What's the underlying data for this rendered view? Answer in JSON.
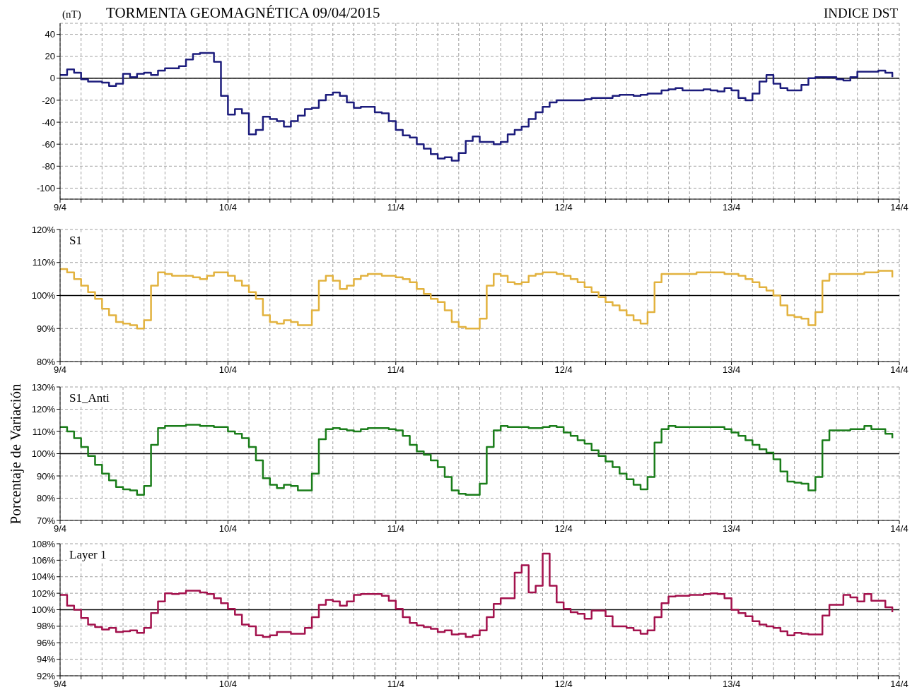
{
  "chart_data": [
    {
      "type": "step",
      "title": "TORMENTA GEOMAGNÉTICA 09/04/2015",
      "ylabel": "(nT)",
      "annotations": [
        "INDICE DST"
      ],
      "grid": true,
      "x": [
        "2015-04-09T00:00",
        "2015-04-09T01:00",
        "2015-04-09T02:00",
        "2015-04-09T03:00",
        "2015-04-09T04:00",
        "2015-04-09T05:00",
        "2015-04-09T06:00",
        "2015-04-09T07:00",
        "2015-04-09T08:00",
        "2015-04-09T09:00",
        "2015-04-09T10:00",
        "2015-04-09T11:00",
        "2015-04-09T12:00",
        "2015-04-09T13:00",
        "2015-04-09T14:00",
        "2015-04-09T15:00",
        "2015-04-09T16:00",
        "2015-04-09T17:00",
        "2015-04-09T18:00",
        "2015-04-09T19:00",
        "2015-04-09T20:00",
        "2015-04-09T21:00",
        "2015-04-09T22:00",
        "2015-04-09T23:00",
        "2015-04-10T00:00",
        "2015-04-10T01:00",
        "2015-04-10T02:00",
        "2015-04-10T03:00",
        "2015-04-10T04:00",
        "2015-04-10T05:00",
        "2015-04-10T06:00",
        "2015-04-10T07:00",
        "2015-04-10T08:00",
        "2015-04-10T09:00",
        "2015-04-10T10:00",
        "2015-04-10T11:00",
        "2015-04-10T12:00",
        "2015-04-10T13:00",
        "2015-04-10T14:00",
        "2015-04-10T15:00",
        "2015-04-10T16:00",
        "2015-04-10T17:00",
        "2015-04-10T18:00",
        "2015-04-10T19:00",
        "2015-04-10T20:00",
        "2015-04-10T21:00",
        "2015-04-10T22:00",
        "2015-04-10T23:00",
        "2015-04-11T00:00",
        "2015-04-11T01:00",
        "2015-04-11T02:00",
        "2015-04-11T03:00",
        "2015-04-11T04:00",
        "2015-04-11T05:00",
        "2015-04-11T06:00",
        "2015-04-11T07:00",
        "2015-04-11T08:00",
        "2015-04-11T09:00",
        "2015-04-11T10:00",
        "2015-04-11T11:00",
        "2015-04-11T12:00",
        "2015-04-11T13:00",
        "2015-04-11T14:00",
        "2015-04-11T15:00",
        "2015-04-11T16:00",
        "2015-04-11T17:00",
        "2015-04-11T18:00",
        "2015-04-11T19:00",
        "2015-04-11T20:00",
        "2015-04-11T21:00",
        "2015-04-11T22:00",
        "2015-04-11T23:00",
        "2015-04-12T00:00",
        "2015-04-12T01:00",
        "2015-04-12T02:00",
        "2015-04-12T03:00",
        "2015-04-12T04:00",
        "2015-04-12T05:00",
        "2015-04-12T06:00",
        "2015-04-12T07:00",
        "2015-04-12T08:00",
        "2015-04-12T09:00",
        "2015-04-12T10:00",
        "2015-04-12T11:00",
        "2015-04-12T12:00",
        "2015-04-12T13:00",
        "2015-04-12T14:00",
        "2015-04-12T15:00",
        "2015-04-12T16:00",
        "2015-04-12T17:00",
        "2015-04-12T18:00",
        "2015-04-12T19:00",
        "2015-04-12T20:00",
        "2015-04-12T21:00",
        "2015-04-12T22:00",
        "2015-04-12T23:00",
        "2015-04-13T00:00",
        "2015-04-13T01:00",
        "2015-04-13T02:00",
        "2015-04-13T03:00",
        "2015-04-13T04:00",
        "2015-04-13T05:00",
        "2015-04-13T06:00",
        "2015-04-13T07:00",
        "2015-04-13T08:00",
        "2015-04-13T09:00",
        "2015-04-13T10:00",
        "2015-04-13T11:00",
        "2015-04-13T12:00",
        "2015-04-13T13:00",
        "2015-04-13T14:00",
        "2015-04-13T15:00",
        "2015-04-13T16:00",
        "2015-04-13T17:00",
        "2015-04-13T18:00",
        "2015-04-13T19:00",
        "2015-04-13T20:00",
        "2015-04-13T21:00",
        "2015-04-13T22:00",
        "2015-04-13T23:00"
      ],
      "xlim": [
        "2015-04-09T00:00",
        "2015-04-14T00:00"
      ],
      "xticks": [
        {
          "value": "2015-04-09T00:00",
          "label": "9/4"
        },
        {
          "value": "2015-04-09T03:00",
          "label": null
        },
        {
          "value": "2015-04-09T06:00",
          "label": null
        },
        {
          "value": "2015-04-09T09:00",
          "label": null
        },
        {
          "value": "2015-04-09T12:00",
          "label": null
        },
        {
          "value": "2015-04-09T15:00",
          "label": null
        },
        {
          "value": "2015-04-09T18:00",
          "label": null
        },
        {
          "value": "2015-04-09T21:00",
          "label": null
        },
        {
          "value": "2015-04-10T00:00",
          "label": "10/4"
        },
        {
          "value": "2015-04-10T03:00",
          "label": null
        },
        {
          "value": "2015-04-10T06:00",
          "label": null
        },
        {
          "value": "2015-04-10T09:00",
          "label": null
        },
        {
          "value": "2015-04-10T12:00",
          "label": null
        },
        {
          "value": "2015-04-10T15:00",
          "label": null
        },
        {
          "value": "2015-04-10T18:00",
          "label": null
        },
        {
          "value": "2015-04-10T21:00",
          "label": null
        },
        {
          "value": "2015-04-11T00:00",
          "label": "11/4"
        },
        {
          "value": "2015-04-11T03:00",
          "label": null
        },
        {
          "value": "2015-04-11T06:00",
          "label": null
        },
        {
          "value": "2015-04-11T09:00",
          "label": null
        },
        {
          "value": "2015-04-11T12:00",
          "label": null
        },
        {
          "value": "2015-04-11T15:00",
          "label": null
        },
        {
          "value": "2015-04-11T18:00",
          "label": null
        },
        {
          "value": "2015-04-11T21:00",
          "label": null
        },
        {
          "value": "2015-04-12T00:00",
          "label": "12/4"
        },
        {
          "value": "2015-04-12T03:00",
          "label": null
        },
        {
          "value": "2015-04-12T06:00",
          "label": null
        },
        {
          "value": "2015-04-12T09:00",
          "label": null
        },
        {
          "value": "2015-04-12T12:00",
          "label": null
        },
        {
          "value": "2015-04-12T15:00",
          "label": null
        },
        {
          "value": "2015-04-12T18:00",
          "label": null
        },
        {
          "value": "2015-04-12T21:00",
          "label": null
        },
        {
          "value": "2015-04-13T00:00",
          "label": "13/4"
        },
        {
          "value": "2015-04-13T03:00",
          "label": null
        },
        {
          "value": "2015-04-13T06:00",
          "label": null
        },
        {
          "value": "2015-04-13T09:00",
          "label": null
        },
        {
          "value": "2015-04-13T12:00",
          "label": null
        },
        {
          "value": "2015-04-13T15:00",
          "label": null
        },
        {
          "value": "2015-04-13T18:00",
          "label": null
        },
        {
          "value": "2015-04-13T21:00",
          "label": null
        },
        {
          "value": "2015-04-14T00:00",
          "label": "14/4"
        }
      ],
      "ylim": [
        -110,
        50
      ],
      "yticks": [
        -100,
        -80,
        -60,
        -40,
        -20,
        0,
        20,
        40
      ],
      "ref_lines": [
        {
          "axis": "y",
          "value": 0,
          "color": "#000000"
        }
      ],
      "series": [
        {
          "color": "#1c1c7c",
          "values": [
            3,
            8,
            5,
            -1,
            -3,
            -3,
            -4,
            -7,
            -5,
            4,
            1,
            4,
            5,
            3,
            7,
            9,
            9,
            11,
            17,
            22,
            23,
            23,
            15,
            -16,
            -33,
            -28,
            -32,
            -51,
            -47,
            -35,
            -37,
            -39,
            -44,
            -39,
            -34,
            -28,
            -27,
            -20,
            -15,
            -13,
            -16,
            -22,
            -27,
            -26,
            -26,
            -31,
            -32,
            -39,
            -47,
            -52,
            -54,
            -60,
            -64,
            -69,
            -73,
            -72,
            -75,
            -68,
            -57,
            -53,
            -58,
            -58,
            -60,
            -58,
            -51,
            -47,
            -44,
            -37,
            -31,
            -26,
            -22,
            -20,
            -20,
            -20,
            -20,
            -19,
            -18,
            -18,
            -18,
            -16,
            -15,
            -15,
            -16,
            -15,
            -14,
            -14,
            -11,
            -10,
            -9,
            -11,
            -11,
            -11,
            -10,
            -11,
            -12,
            -9,
            -11,
            -18,
            -20,
            -14,
            -3,
            3,
            -5,
            -9,
            -11,
            -11,
            -6,
            0,
            1,
            1,
            1,
            -1,
            -2,
            1,
            6,
            6,
            6,
            7,
            5,
            1
          ]
        }
      ]
    },
    {
      "type": "step",
      "grid": true,
      "x": [
        "2015-04-09T00:00",
        "2015-04-09T01:00",
        "2015-04-09T02:00",
        "2015-04-09T03:00",
        "2015-04-09T04:00",
        "2015-04-09T05:00",
        "2015-04-09T06:00",
        "2015-04-09T07:00",
        "2015-04-09T08:00",
        "2015-04-09T09:00",
        "2015-04-09T10:00",
        "2015-04-09T11:00",
        "2015-04-09T12:00",
        "2015-04-09T13:00",
        "2015-04-09T14:00",
        "2015-04-09T15:00",
        "2015-04-09T16:00",
        "2015-04-09T17:00",
        "2015-04-09T18:00",
        "2015-04-09T19:00",
        "2015-04-09T20:00",
        "2015-04-09T21:00",
        "2015-04-09T22:00",
        "2015-04-09T23:00",
        "2015-04-10T00:00",
        "2015-04-10T01:00",
        "2015-04-10T02:00",
        "2015-04-10T03:00",
        "2015-04-10T04:00",
        "2015-04-10T05:00",
        "2015-04-10T06:00",
        "2015-04-10T07:00",
        "2015-04-10T08:00",
        "2015-04-10T09:00",
        "2015-04-10T10:00",
        "2015-04-10T11:00",
        "2015-04-10T12:00",
        "2015-04-10T13:00",
        "2015-04-10T14:00",
        "2015-04-10T15:00",
        "2015-04-10T16:00",
        "2015-04-10T17:00",
        "2015-04-10T18:00",
        "2015-04-10T19:00",
        "2015-04-10T20:00",
        "2015-04-10T21:00",
        "2015-04-10T22:00",
        "2015-04-10T23:00",
        "2015-04-11T00:00",
        "2015-04-11T01:00",
        "2015-04-11T02:00",
        "2015-04-11T03:00",
        "2015-04-11T04:00",
        "2015-04-11T05:00",
        "2015-04-11T06:00",
        "2015-04-11T07:00",
        "2015-04-11T08:00",
        "2015-04-11T09:00",
        "2015-04-11T10:00",
        "2015-04-11T11:00",
        "2015-04-11T12:00",
        "2015-04-11T13:00",
        "2015-04-11T14:00",
        "2015-04-11T15:00",
        "2015-04-11T16:00",
        "2015-04-11T17:00",
        "2015-04-11T18:00",
        "2015-04-11T19:00",
        "2015-04-11T20:00",
        "2015-04-11T21:00",
        "2015-04-11T22:00",
        "2015-04-11T23:00",
        "2015-04-12T00:00",
        "2015-04-12T01:00",
        "2015-04-12T02:00",
        "2015-04-12T03:00",
        "2015-04-12T04:00",
        "2015-04-12T05:00",
        "2015-04-12T06:00",
        "2015-04-12T07:00",
        "2015-04-12T08:00",
        "2015-04-12T09:00",
        "2015-04-12T10:00",
        "2015-04-12T11:00",
        "2015-04-12T12:00",
        "2015-04-12T13:00",
        "2015-04-12T14:00",
        "2015-04-12T15:00",
        "2015-04-12T16:00",
        "2015-04-12T17:00",
        "2015-04-12T18:00",
        "2015-04-12T19:00",
        "2015-04-12T20:00",
        "2015-04-12T21:00",
        "2015-04-12T22:00",
        "2015-04-12T23:00",
        "2015-04-13T00:00",
        "2015-04-13T01:00",
        "2015-04-13T02:00",
        "2015-04-13T03:00",
        "2015-04-13T04:00",
        "2015-04-13T05:00",
        "2015-04-13T06:00",
        "2015-04-13T07:00",
        "2015-04-13T08:00",
        "2015-04-13T09:00",
        "2015-04-13T10:00",
        "2015-04-13T11:00",
        "2015-04-13T12:00",
        "2015-04-13T13:00",
        "2015-04-13T14:00",
        "2015-04-13T15:00",
        "2015-04-13T16:00",
        "2015-04-13T17:00",
        "2015-04-13T18:00",
        "2015-04-13T19:00",
        "2015-04-13T20:00",
        "2015-04-13T21:00",
        "2015-04-13T22:00",
        "2015-04-13T23:00"
      ],
      "xlim": [
        "2015-04-09T00:00",
        "2015-04-14T00:00"
      ],
      "xticks": [
        {
          "value": "2015-04-09T00:00",
          "label": "9/4"
        },
        {
          "value": "2015-04-09T03:00",
          "label": null
        },
        {
          "value": "2015-04-09T06:00",
          "label": null
        },
        {
          "value": "2015-04-09T09:00",
          "label": null
        },
        {
          "value": "2015-04-09T12:00",
          "label": null
        },
        {
          "value": "2015-04-09T15:00",
          "label": null
        },
        {
          "value": "2015-04-09T18:00",
          "label": null
        },
        {
          "value": "2015-04-09T21:00",
          "label": null
        },
        {
          "value": "2015-04-10T00:00",
          "label": "10/4"
        },
        {
          "value": "2015-04-10T03:00",
          "label": null
        },
        {
          "value": "2015-04-10T06:00",
          "label": null
        },
        {
          "value": "2015-04-10T09:00",
          "label": null
        },
        {
          "value": "2015-04-10T12:00",
          "label": null
        },
        {
          "value": "2015-04-10T15:00",
          "label": null
        },
        {
          "value": "2015-04-10T18:00",
          "label": null
        },
        {
          "value": "2015-04-10T21:00",
          "label": null
        },
        {
          "value": "2015-04-11T00:00",
          "label": "11/4"
        },
        {
          "value": "2015-04-11T03:00",
          "label": null
        },
        {
          "value": "2015-04-11T06:00",
          "label": null
        },
        {
          "value": "2015-04-11T09:00",
          "label": null
        },
        {
          "value": "2015-04-11T12:00",
          "label": null
        },
        {
          "value": "2015-04-11T15:00",
          "label": null
        },
        {
          "value": "2015-04-11T18:00",
          "label": null
        },
        {
          "value": "2015-04-11T21:00",
          "label": null
        },
        {
          "value": "2015-04-12T00:00",
          "label": "12/4"
        },
        {
          "value": "2015-04-12T03:00",
          "label": null
        },
        {
          "value": "2015-04-12T06:00",
          "label": null
        },
        {
          "value": "2015-04-12T09:00",
          "label": null
        },
        {
          "value": "2015-04-12T12:00",
          "label": null
        },
        {
          "value": "2015-04-12T15:00",
          "label": null
        },
        {
          "value": "2015-04-12T18:00",
          "label": null
        },
        {
          "value": "2015-04-12T21:00",
          "label": null
        },
        {
          "value": "2015-04-13T00:00",
          "label": "13/4"
        },
        {
          "value": "2015-04-13T03:00",
          "label": null
        },
        {
          "value": "2015-04-13T06:00",
          "label": null
        },
        {
          "value": "2015-04-13T09:00",
          "label": null
        },
        {
          "value": "2015-04-13T12:00",
          "label": null
        },
        {
          "value": "2015-04-13T15:00",
          "label": null
        },
        {
          "value": "2015-04-13T18:00",
          "label": null
        },
        {
          "value": "2015-04-13T21:00",
          "label": null
        },
        {
          "value": "2015-04-14T00:00",
          "label": "14/4"
        }
      ],
      "ylim": [
        80,
        120
      ],
      "yticks": [
        {
          "value": 80,
          "label": "80%"
        },
        {
          "value": 90,
          "label": "90%"
        },
        {
          "value": 100,
          "label": "100%"
        },
        {
          "value": 110,
          "label": "110%"
        },
        {
          "value": 120,
          "label": "120%"
        }
      ],
      "ref_lines": [
        {
          "axis": "y",
          "value": 100,
          "color": "#000000"
        }
      ],
      "series": [
        {
          "name": "S1",
          "color": "#e2b23e",
          "values": [
            108,
            107,
            105,
            103,
            101,
            99,
            96,
            94,
            92,
            91.5,
            91,
            90,
            92.5,
            103,
            107,
            106.5,
            106,
            106,
            106,
            105.5,
            105,
            106,
            107,
            107,
            106,
            104.5,
            103,
            101,
            99,
            94,
            92,
            91.5,
            92.5,
            92,
            91,
            91,
            95.5,
            104.5,
            106,
            104.5,
            102,
            103,
            105,
            106,
            106.5,
            106.5,
            106,
            106,
            105.5,
            105,
            104,
            102,
            100.5,
            99,
            98,
            95.5,
            92,
            90.5,
            90,
            90,
            93,
            103,
            106.5,
            106,
            104,
            103.5,
            104,
            106,
            106.5,
            107,
            107,
            106.5,
            106,
            105,
            104,
            102.5,
            101,
            99.5,
            98,
            97,
            95.5,
            94,
            92.5,
            91.5,
            95,
            104,
            106.5,
            106.5,
            106.5,
            106.5,
            106.5,
            107,
            107,
            107,
            107,
            106.5,
            106.5,
            106,
            105,
            104,
            102.5,
            101.5,
            100,
            97,
            94,
            93.5,
            93,
            91,
            95,
            104.5,
            106.5,
            106.5,
            106.5,
            106.5,
            106.5,
            107,
            107,
            107.5,
            107.5,
            105.5
          ]
        }
      ]
    },
    {
      "type": "step",
      "grid": true,
      "ylabel": "Porcentaje de Variación",
      "x": [
        "2015-04-09T00:00",
        "2015-04-09T01:00",
        "2015-04-09T02:00",
        "2015-04-09T03:00",
        "2015-04-09T04:00",
        "2015-04-09T05:00",
        "2015-04-09T06:00",
        "2015-04-09T07:00",
        "2015-04-09T08:00",
        "2015-04-09T09:00",
        "2015-04-09T10:00",
        "2015-04-09T11:00",
        "2015-04-09T12:00",
        "2015-04-09T13:00",
        "2015-04-09T14:00",
        "2015-04-09T15:00",
        "2015-04-09T16:00",
        "2015-04-09T17:00",
        "2015-04-09T18:00",
        "2015-04-09T19:00",
        "2015-04-09T20:00",
        "2015-04-09T21:00",
        "2015-04-09T22:00",
        "2015-04-09T23:00",
        "2015-04-10T00:00",
        "2015-04-10T01:00",
        "2015-04-10T02:00",
        "2015-04-10T03:00",
        "2015-04-10T04:00",
        "2015-04-10T05:00",
        "2015-04-10T06:00",
        "2015-04-10T07:00",
        "2015-04-10T08:00",
        "2015-04-10T09:00",
        "2015-04-10T10:00",
        "2015-04-10T11:00",
        "2015-04-10T12:00",
        "2015-04-10T13:00",
        "2015-04-10T14:00",
        "2015-04-10T15:00",
        "2015-04-10T16:00",
        "2015-04-10T17:00",
        "2015-04-10T18:00",
        "2015-04-10T19:00",
        "2015-04-10T20:00",
        "2015-04-10T21:00",
        "2015-04-10T22:00",
        "2015-04-10T23:00",
        "2015-04-11T00:00",
        "2015-04-11T01:00",
        "2015-04-11T02:00",
        "2015-04-11T03:00",
        "2015-04-11T04:00",
        "2015-04-11T05:00",
        "2015-04-11T06:00",
        "2015-04-11T07:00",
        "2015-04-11T08:00",
        "2015-04-11T09:00",
        "2015-04-11T10:00",
        "2015-04-11T11:00",
        "2015-04-11T12:00",
        "2015-04-11T13:00",
        "2015-04-11T14:00",
        "2015-04-11T15:00",
        "2015-04-11T16:00",
        "2015-04-11T17:00",
        "2015-04-11T18:00",
        "2015-04-11T19:00",
        "2015-04-11T20:00",
        "2015-04-11T21:00",
        "2015-04-11T22:00",
        "2015-04-11T23:00",
        "2015-04-12T00:00",
        "2015-04-12T01:00",
        "2015-04-12T02:00",
        "2015-04-12T03:00",
        "2015-04-12T04:00",
        "2015-04-12T05:00",
        "2015-04-12T06:00",
        "2015-04-12T07:00",
        "2015-04-12T08:00",
        "2015-04-12T09:00",
        "2015-04-12T10:00",
        "2015-04-12T11:00",
        "2015-04-12T12:00",
        "2015-04-12T13:00",
        "2015-04-12T14:00",
        "2015-04-12T15:00",
        "2015-04-12T16:00",
        "2015-04-12T17:00",
        "2015-04-12T18:00",
        "2015-04-12T19:00",
        "2015-04-12T20:00",
        "2015-04-12T21:00",
        "2015-04-12T22:00",
        "2015-04-12T23:00",
        "2015-04-13T00:00",
        "2015-04-13T01:00",
        "2015-04-13T02:00",
        "2015-04-13T03:00",
        "2015-04-13T04:00",
        "2015-04-13T05:00",
        "2015-04-13T06:00",
        "2015-04-13T07:00",
        "2015-04-13T08:00",
        "2015-04-13T09:00",
        "2015-04-13T10:00",
        "2015-04-13T11:00",
        "2015-04-13T12:00",
        "2015-04-13T13:00",
        "2015-04-13T14:00",
        "2015-04-13T15:00",
        "2015-04-13T16:00",
        "2015-04-13T17:00",
        "2015-04-13T18:00",
        "2015-04-13T19:00",
        "2015-04-13T20:00",
        "2015-04-13T21:00",
        "2015-04-13T22:00",
        "2015-04-13T23:00"
      ],
      "xlim": [
        "2015-04-09T00:00",
        "2015-04-14T00:00"
      ],
      "xticks": [
        {
          "value": "2015-04-09T00:00",
          "label": "9/4"
        },
        {
          "value": "2015-04-09T03:00",
          "label": null
        },
        {
          "value": "2015-04-09T06:00",
          "label": null
        },
        {
          "value": "2015-04-09T09:00",
          "label": null
        },
        {
          "value": "2015-04-09T12:00",
          "label": null
        },
        {
          "value": "2015-04-09T15:00",
          "label": null
        },
        {
          "value": "2015-04-09T18:00",
          "label": null
        },
        {
          "value": "2015-04-09T21:00",
          "label": null
        },
        {
          "value": "2015-04-10T00:00",
          "label": "10/4"
        },
        {
          "value": "2015-04-10T03:00",
          "label": null
        },
        {
          "value": "2015-04-10T06:00",
          "label": null
        },
        {
          "value": "2015-04-10T09:00",
          "label": null
        },
        {
          "value": "2015-04-10T12:00",
          "label": null
        },
        {
          "value": "2015-04-10T15:00",
          "label": null
        },
        {
          "value": "2015-04-10T18:00",
          "label": null
        },
        {
          "value": "2015-04-10T21:00",
          "label": null
        },
        {
          "value": "2015-04-11T00:00",
          "label": "11/4"
        },
        {
          "value": "2015-04-11T03:00",
          "label": null
        },
        {
          "value": "2015-04-11T06:00",
          "label": null
        },
        {
          "value": "2015-04-11T09:00",
          "label": null
        },
        {
          "value": "2015-04-11T12:00",
          "label": null
        },
        {
          "value": "2015-04-11T15:00",
          "label": null
        },
        {
          "value": "2015-04-11T18:00",
          "label": null
        },
        {
          "value": "2015-04-11T21:00",
          "label": null
        },
        {
          "value": "2015-04-12T00:00",
          "label": "12/4"
        },
        {
          "value": "2015-04-12T03:00",
          "label": null
        },
        {
          "value": "2015-04-12T06:00",
          "label": null
        },
        {
          "value": "2015-04-12T09:00",
          "label": null
        },
        {
          "value": "2015-04-12T12:00",
          "label": null
        },
        {
          "value": "2015-04-12T15:00",
          "label": null
        },
        {
          "value": "2015-04-12T18:00",
          "label": null
        },
        {
          "value": "2015-04-12T21:00",
          "label": null
        },
        {
          "value": "2015-04-13T00:00",
          "label": "13/4"
        },
        {
          "value": "2015-04-13T03:00",
          "label": null
        },
        {
          "value": "2015-04-13T06:00",
          "label": null
        },
        {
          "value": "2015-04-13T09:00",
          "label": null
        },
        {
          "value": "2015-04-13T12:00",
          "label": null
        },
        {
          "value": "2015-04-13T15:00",
          "label": null
        },
        {
          "value": "2015-04-13T18:00",
          "label": null
        },
        {
          "value": "2015-04-13T21:00",
          "label": null
        },
        {
          "value": "2015-04-14T00:00",
          "label": "14/4"
        }
      ],
      "ylim": [
        70,
        130
      ],
      "yticks": [
        {
          "value": 70,
          "label": "70%"
        },
        {
          "value": 80,
          "label": "80%"
        },
        {
          "value": 90,
          "label": "90%"
        },
        {
          "value": 100,
          "label": "100%"
        },
        {
          "value": 110,
          "label": "110%"
        },
        {
          "value": 120,
          "label": "120%"
        },
        {
          "value": 130,
          "label": "130%"
        }
      ],
      "ref_lines": [
        {
          "axis": "y",
          "value": 100,
          "color": "#000000"
        }
      ],
      "series": [
        {
          "name": "S1_Anti",
          "color": "#1a7d1a",
          "values": [
            112,
            110,
            107,
            103,
            99,
            95,
            91,
            88,
            85,
            84,
            83.5,
            81.5,
            85.5,
            104,
            111.5,
            112.5,
            112.5,
            112.5,
            113,
            113,
            112.5,
            112.5,
            112,
            112,
            110,
            109,
            107,
            103,
            97,
            89,
            86,
            84.5,
            86,
            85.5,
            83.5,
            83.5,
            91,
            106.5,
            111,
            111.5,
            111,
            110.5,
            110,
            111,
            111.5,
            111.5,
            111.5,
            111,
            110.5,
            108,
            104,
            101,
            99.5,
            97,
            94,
            89.5,
            83.5,
            82,
            81.5,
            81.5,
            86.5,
            103,
            110.5,
            112.5,
            112,
            112,
            112,
            111.5,
            111.5,
            112,
            112.5,
            112,
            109.5,
            108,
            106,
            104.5,
            101.5,
            99,
            96.5,
            94,
            91,
            88.5,
            86,
            84,
            89.5,
            105,
            111,
            112.5,
            112,
            112,
            112,
            112,
            112,
            112,
            112,
            111,
            109.5,
            108,
            106,
            104,
            102,
            100.5,
            97.5,
            92,
            87.5,
            87,
            86.5,
            83.5,
            89.5,
            106,
            110.5,
            110.5,
            110.5,
            111,
            111,
            112.5,
            111,
            111,
            109,
            107
          ]
        }
      ]
    },
    {
      "type": "step",
      "grid": true,
      "x": [
        "2015-04-09T00:00",
        "2015-04-09T01:00",
        "2015-04-09T02:00",
        "2015-04-09T03:00",
        "2015-04-09T04:00",
        "2015-04-09T05:00",
        "2015-04-09T06:00",
        "2015-04-09T07:00",
        "2015-04-09T08:00",
        "2015-04-09T09:00",
        "2015-04-09T10:00",
        "2015-04-09T11:00",
        "2015-04-09T12:00",
        "2015-04-09T13:00",
        "2015-04-09T14:00",
        "2015-04-09T15:00",
        "2015-04-09T16:00",
        "2015-04-09T17:00",
        "2015-04-09T18:00",
        "2015-04-09T19:00",
        "2015-04-09T20:00",
        "2015-04-09T21:00",
        "2015-04-09T22:00",
        "2015-04-09T23:00",
        "2015-04-10T00:00",
        "2015-04-10T01:00",
        "2015-04-10T02:00",
        "2015-04-10T03:00",
        "2015-04-10T04:00",
        "2015-04-10T05:00",
        "2015-04-10T06:00",
        "2015-04-10T07:00",
        "2015-04-10T08:00",
        "2015-04-10T09:00",
        "2015-04-10T10:00",
        "2015-04-10T11:00",
        "2015-04-10T12:00",
        "2015-04-10T13:00",
        "2015-04-10T14:00",
        "2015-04-10T15:00",
        "2015-04-10T16:00",
        "2015-04-10T17:00",
        "2015-04-10T18:00",
        "2015-04-10T19:00",
        "2015-04-10T20:00",
        "2015-04-10T21:00",
        "2015-04-10T22:00",
        "2015-04-10T23:00",
        "2015-04-11T00:00",
        "2015-04-11T01:00",
        "2015-04-11T02:00",
        "2015-04-11T03:00",
        "2015-04-11T04:00",
        "2015-04-11T05:00",
        "2015-04-11T06:00",
        "2015-04-11T07:00",
        "2015-04-11T08:00",
        "2015-04-11T09:00",
        "2015-04-11T10:00",
        "2015-04-11T11:00",
        "2015-04-11T12:00",
        "2015-04-11T13:00",
        "2015-04-11T14:00",
        "2015-04-11T15:00",
        "2015-04-11T16:00",
        "2015-04-11T17:00",
        "2015-04-11T18:00",
        "2015-04-11T19:00",
        "2015-04-11T20:00",
        "2015-04-11T21:00",
        "2015-04-11T22:00",
        "2015-04-11T23:00",
        "2015-04-12T00:00",
        "2015-04-12T01:00",
        "2015-04-12T02:00",
        "2015-04-12T03:00",
        "2015-04-12T04:00",
        "2015-04-12T05:00",
        "2015-04-12T06:00",
        "2015-04-12T07:00",
        "2015-04-12T08:00",
        "2015-04-12T09:00",
        "2015-04-12T10:00",
        "2015-04-12T11:00",
        "2015-04-12T12:00",
        "2015-04-12T13:00",
        "2015-04-12T14:00",
        "2015-04-12T15:00",
        "2015-04-12T16:00",
        "2015-04-12T17:00",
        "2015-04-12T18:00",
        "2015-04-12T19:00",
        "2015-04-12T20:00",
        "2015-04-12T21:00",
        "2015-04-12T22:00",
        "2015-04-12T23:00",
        "2015-04-13T00:00",
        "2015-04-13T01:00",
        "2015-04-13T02:00",
        "2015-04-13T03:00",
        "2015-04-13T04:00",
        "2015-04-13T05:00",
        "2015-04-13T06:00",
        "2015-04-13T07:00",
        "2015-04-13T08:00",
        "2015-04-13T09:00",
        "2015-04-13T10:00",
        "2015-04-13T11:00",
        "2015-04-13T12:00",
        "2015-04-13T13:00",
        "2015-04-13T14:00",
        "2015-04-13T15:00",
        "2015-04-13T16:00",
        "2015-04-13T17:00",
        "2015-04-13T18:00",
        "2015-04-13T19:00",
        "2015-04-13T20:00",
        "2015-04-13T21:00",
        "2015-04-13T22:00",
        "2015-04-13T23:00"
      ],
      "xlim": [
        "2015-04-09T00:00",
        "2015-04-14T00:00"
      ],
      "xticks": [
        {
          "value": "2015-04-09T00:00",
          "label": "9/4"
        },
        {
          "value": "2015-04-09T03:00",
          "label": null
        },
        {
          "value": "2015-04-09T06:00",
          "label": null
        },
        {
          "value": "2015-04-09T09:00",
          "label": null
        },
        {
          "value": "2015-04-09T12:00",
          "label": null
        },
        {
          "value": "2015-04-09T15:00",
          "label": null
        },
        {
          "value": "2015-04-09T18:00",
          "label": null
        },
        {
          "value": "2015-04-09T21:00",
          "label": null
        },
        {
          "value": "2015-04-10T00:00",
          "label": "10/4"
        },
        {
          "value": "2015-04-10T03:00",
          "label": null
        },
        {
          "value": "2015-04-10T06:00",
          "label": null
        },
        {
          "value": "2015-04-10T09:00",
          "label": null
        },
        {
          "value": "2015-04-10T12:00",
          "label": null
        },
        {
          "value": "2015-04-10T15:00",
          "label": null
        },
        {
          "value": "2015-04-10T18:00",
          "label": null
        },
        {
          "value": "2015-04-10T21:00",
          "label": null
        },
        {
          "value": "2015-04-11T00:00",
          "label": "11/4"
        },
        {
          "value": "2015-04-11T03:00",
          "label": null
        },
        {
          "value": "2015-04-11T06:00",
          "label": null
        },
        {
          "value": "2015-04-11T09:00",
          "label": null
        },
        {
          "value": "2015-04-11T12:00",
          "label": null
        },
        {
          "value": "2015-04-11T15:00",
          "label": null
        },
        {
          "value": "2015-04-11T18:00",
          "label": null
        },
        {
          "value": "2015-04-11T21:00",
          "label": null
        },
        {
          "value": "2015-04-12T00:00",
          "label": "12/4"
        },
        {
          "value": "2015-04-12T03:00",
          "label": null
        },
        {
          "value": "2015-04-12T06:00",
          "label": null
        },
        {
          "value": "2015-04-12T09:00",
          "label": null
        },
        {
          "value": "2015-04-12T12:00",
          "label": null
        },
        {
          "value": "2015-04-12T15:00",
          "label": null
        },
        {
          "value": "2015-04-12T18:00",
          "label": null
        },
        {
          "value": "2015-04-12T21:00",
          "label": null
        },
        {
          "value": "2015-04-13T00:00",
          "label": "13/4"
        },
        {
          "value": "2015-04-13T03:00",
          "label": null
        },
        {
          "value": "2015-04-13T06:00",
          "label": null
        },
        {
          "value": "2015-04-13T09:00",
          "label": null
        },
        {
          "value": "2015-04-13T12:00",
          "label": null
        },
        {
          "value": "2015-04-13T15:00",
          "label": null
        },
        {
          "value": "2015-04-13T18:00",
          "label": null
        },
        {
          "value": "2015-04-13T21:00",
          "label": null
        },
        {
          "value": "2015-04-14T00:00",
          "label": "14/4"
        }
      ],
      "ylim": [
        92,
        108
      ],
      "yticks": [
        {
          "value": 92,
          "label": "92%"
        },
        {
          "value": 94,
          "label": "94%"
        },
        {
          "value": 96,
          "label": "96%"
        },
        {
          "value": 98,
          "label": "98%"
        },
        {
          "value": 100,
          "label": "100%"
        },
        {
          "value": 102,
          "label": "102%"
        },
        {
          "value": 104,
          "label": "104%"
        },
        {
          "value": 106,
          "label": "106%"
        },
        {
          "value": 108,
          "label": "108%"
        }
      ],
      "ref_lines": [
        {
          "axis": "y",
          "value": 100,
          "color": "#000000"
        }
      ],
      "series": [
        {
          "name": "Layer 1",
          "color": "#a3124d",
          "values": [
            101.8,
            100.5,
            100,
            99,
            98.2,
            97.9,
            97.6,
            97.8,
            97.3,
            97.4,
            97.5,
            97.2,
            97.8,
            99.6,
            101,
            102,
            101.9,
            102,
            102.3,
            102.3,
            102.1,
            101.9,
            101.4,
            100.8,
            100.1,
            99.4,
            98.2,
            98,
            96.9,
            96.7,
            96.9,
            97.3,
            97.3,
            97.1,
            97.1,
            97.8,
            99.1,
            100.6,
            101.2,
            101,
            100.5,
            101,
            101.8,
            101.9,
            101.9,
            101.9,
            101.7,
            101.1,
            100.1,
            99.1,
            98.4,
            98.1,
            97.9,
            97.7,
            97.3,
            97.5,
            97,
            97.1,
            96.7,
            96.9,
            97.5,
            99.1,
            100.7,
            101.4,
            101.4,
            104.5,
            105.4,
            102.1,
            102.9,
            106.8,
            102.9,
            100.9,
            100.1,
            99.7,
            99.5,
            98.9,
            99.9,
            99.9,
            99.2,
            98,
            98,
            97.8,
            97.5,
            97.1,
            97.5,
            99.1,
            100.8,
            101.6,
            101.7,
            101.7,
            101.8,
            101.8,
            101.9,
            102,
            101.9,
            101.4,
            100,
            99.6,
            99.2,
            98.6,
            98.2,
            98,
            97.8,
            97.4,
            96.9,
            97.2,
            97.1,
            97,
            97,
            99.3,
            100.6,
            100.6,
            101.8,
            101.5,
            101,
            101.9,
            101.1,
            101.1,
            100.3,
            99.7
          ]
        }
      ]
    }
  ]
}
